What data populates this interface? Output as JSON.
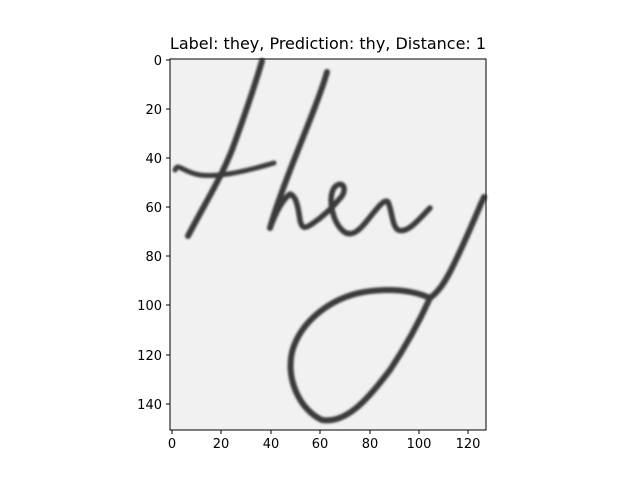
{
  "figure": {
    "title": "Label: they, Prediction: thy, Distance: 1",
    "image_semantic": "handwritten-word-image",
    "colormap": "grayscale",
    "axes": {
      "x_ticks": [
        "0",
        "20",
        "40",
        "60",
        "80",
        "100",
        "120"
      ],
      "y_ticks": [
        "0",
        "20",
        "40",
        "60",
        "80",
        "100",
        "120",
        "140"
      ]
    }
  }
}
